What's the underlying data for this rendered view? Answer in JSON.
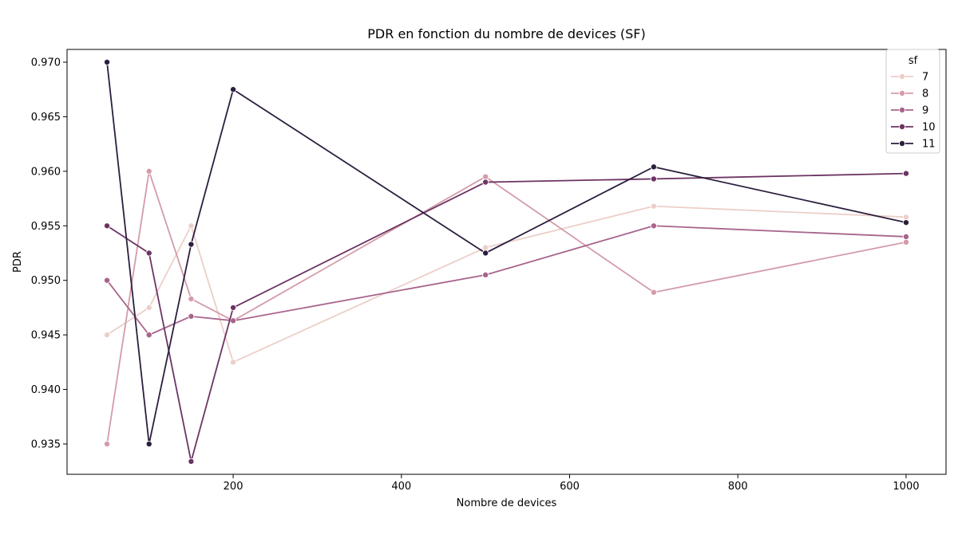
{
  "chart_data": {
    "type": "line",
    "title": "PDR en fonction du nombre de devices (SF)",
    "xlabel": "Nombre de devices",
    "ylabel": "PDR",
    "x": [
      50,
      100,
      150,
      200,
      500,
      700,
      1000
    ],
    "xlim": [
      2.5,
      1047.5
    ],
    "ylim": [
      0.93222,
      0.97117
    ],
    "xticks": [
      200,
      400,
      600,
      800,
      1000
    ],
    "yticks": [
      0.935,
      0.94,
      0.945,
      0.95,
      0.955,
      0.96,
      0.965,
      0.97
    ],
    "grid": false,
    "legend_title": "sf",
    "legend_position": "top-right",
    "series": [
      {
        "name": "7",
        "color": "#eccfc8",
        "values": [
          0.945,
          0.9475,
          0.955,
          0.9425,
          0.953,
          0.9568,
          0.9558
        ]
      },
      {
        "name": "8",
        "color": "#d49ba9",
        "values": [
          0.935,
          0.96,
          0.9483,
          0.9463,
          0.9595,
          0.9489,
          0.9535
        ]
      },
      {
        "name": "9",
        "color": "#a8648c",
        "values": [
          0.95,
          0.945,
          0.9467,
          0.9463,
          0.9505,
          0.955,
          0.954
        ]
      },
      {
        "name": "10",
        "color": "#6c3463",
        "values": [
          0.955,
          0.9525,
          0.9334,
          0.9475,
          0.959,
          0.9593,
          0.9598
        ]
      },
      {
        "name": "11",
        "color": "#2c1e3e",
        "values": [
          0.97,
          0.935,
          0.9533,
          0.9675,
          0.9525,
          0.9604,
          0.9553
        ]
      }
    ]
  }
}
